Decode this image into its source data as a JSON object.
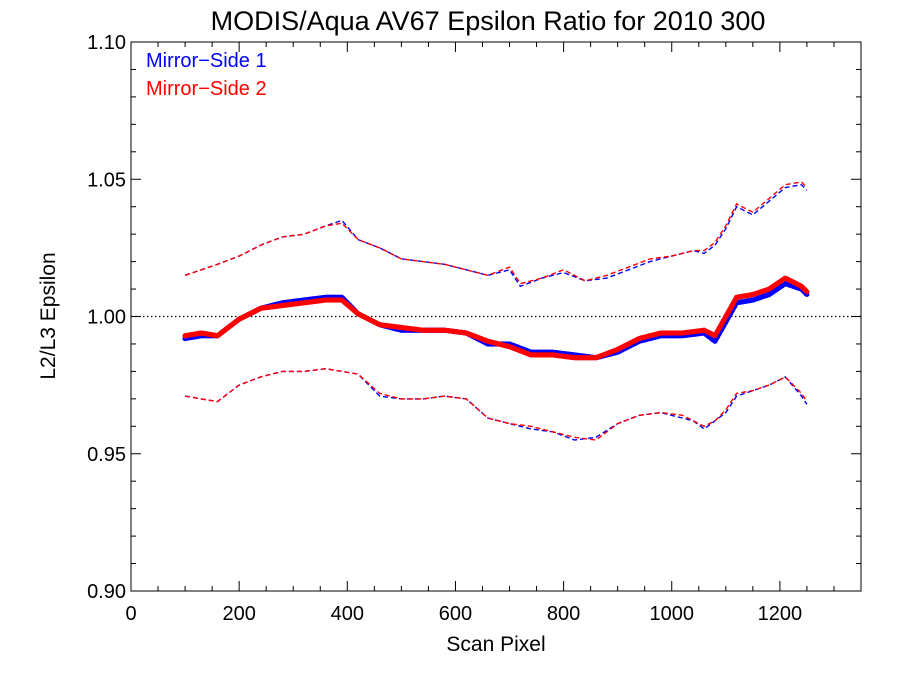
{
  "chart_data": {
    "type": "scatter",
    "title": "MODIS/Aqua AV67 Epsilon Ratio for 2010 300",
    "xlabel": "Scan Pixel",
    "ylabel": "L2/L3 Epsilon",
    "xlim": [
      0,
      1350
    ],
    "ylim": [
      0.9,
      1.1
    ],
    "x_ticks": [
      0,
      200,
      400,
      600,
      800,
      1000,
      1200
    ],
    "x_tick_labels": [
      "0",
      "200",
      "400",
      "600",
      "800",
      "1000",
      "1200"
    ],
    "y_ticks": [
      0.9,
      0.95,
      1.0,
      1.05,
      1.1
    ],
    "y_tick_labels": [
      "0.90",
      "0.95",
      "1.00",
      "1.05",
      "1.10"
    ],
    "x_minor_step": 50,
    "y_minor_step": 0.01,
    "reference_line": {
      "y": 1.0,
      "style": "dotted",
      "color": "#000000"
    },
    "legend": {
      "position": "top-left",
      "entries": [
        {
          "label": "Mirror−Side 1",
          "color": "#0000ff"
        },
        {
          "label": "Mirror−Side 2",
          "color": "#ff0000"
        }
      ]
    },
    "series": [
      {
        "name": "Mirror−Side 1",
        "color": "#0000ff",
        "mean": {
          "x": [
            100,
            130,
            160,
            200,
            240,
            280,
            320,
            360,
            390,
            420,
            460,
            500,
            540,
            580,
            620,
            660,
            700,
            740,
            780,
            820,
            860,
            900,
            940,
            980,
            1020,
            1060,
            1080,
            1100,
            1120,
            1150,
            1180,
            1210,
            1240,
            1250
          ],
          "y": [
            0.992,
            0.993,
            0.993,
            0.999,
            1.003,
            1.005,
            1.006,
            1.007,
            1.007,
            1.001,
            0.997,
            0.995,
            0.995,
            0.995,
            0.994,
            0.99,
            0.99,
            0.987,
            0.987,
            0.986,
            0.985,
            0.987,
            0.991,
            0.993,
            0.993,
            0.994,
            0.991,
            0.998,
            1.005,
            1.006,
            1.008,
            1.012,
            1.01,
            1.008
          ]
        },
        "upper": {
          "x": [
            100,
            130,
            160,
            200,
            240,
            280,
            320,
            360,
            390,
            420,
            460,
            500,
            540,
            580,
            620,
            660,
            700,
            720,
            760,
            800,
            840,
            880,
            920,
            960,
            1000,
            1040,
            1060,
            1080,
            1100,
            1120,
            1150,
            1180,
            1210,
            1240,
            1250
          ],
          "y": [
            1.015,
            1.017,
            1.019,
            1.022,
            1.026,
            1.029,
            1.03,
            1.033,
            1.035,
            1.028,
            1.025,
            1.021,
            1.02,
            1.019,
            1.017,
            1.015,
            1.017,
            1.011,
            1.014,
            1.016,
            1.013,
            1.014,
            1.017,
            1.02,
            1.022,
            1.024,
            1.023,
            1.026,
            1.032,
            1.04,
            1.037,
            1.042,
            1.047,
            1.048,
            1.046
          ]
        },
        "lower": {
          "x": [
            100,
            130,
            160,
            200,
            240,
            280,
            320,
            360,
            390,
            420,
            460,
            500,
            540,
            580,
            620,
            660,
            700,
            740,
            780,
            820,
            860,
            900,
            940,
            980,
            1020,
            1040,
            1060,
            1080,
            1100,
            1120,
            1150,
            1180,
            1210,
            1240,
            1250
          ],
          "y": [
            0.971,
            0.97,
            0.969,
            0.975,
            0.978,
            0.98,
            0.98,
            0.981,
            0.98,
            0.979,
            0.971,
            0.97,
            0.97,
            0.971,
            0.97,
            0.963,
            0.961,
            0.959,
            0.958,
            0.955,
            0.956,
            0.961,
            0.964,
            0.965,
            0.963,
            0.962,
            0.959,
            0.962,
            0.965,
            0.971,
            0.973,
            0.975,
            0.978,
            0.971,
            0.968
          ]
        }
      },
      {
        "name": "Mirror−Side 2",
        "color": "#ff0000",
        "mean": {
          "x": [
            100,
            130,
            160,
            200,
            240,
            280,
            320,
            360,
            390,
            420,
            460,
            500,
            540,
            580,
            620,
            660,
            700,
            740,
            780,
            820,
            860,
            900,
            940,
            980,
            1020,
            1060,
            1080,
            1100,
            1120,
            1150,
            1180,
            1210,
            1240,
            1250
          ],
          "y": [
            0.993,
            0.994,
            0.993,
            0.999,
            1.003,
            1.004,
            1.005,
            1.006,
            1.006,
            1.001,
            0.997,
            0.996,
            0.995,
            0.995,
            0.994,
            0.991,
            0.989,
            0.986,
            0.986,
            0.985,
            0.985,
            0.988,
            0.992,
            0.994,
            0.994,
            0.995,
            0.993,
            1.0,
            1.007,
            1.008,
            1.01,
            1.014,
            1.011,
            1.009
          ]
        },
        "upper": {
          "x": [
            100,
            130,
            160,
            200,
            240,
            280,
            320,
            360,
            390,
            420,
            460,
            500,
            540,
            580,
            620,
            660,
            700,
            720,
            760,
            800,
            840,
            880,
            920,
            960,
            1000,
            1040,
            1060,
            1080,
            1100,
            1120,
            1150,
            1180,
            1210,
            1240,
            1250
          ],
          "y": [
            1.015,
            1.017,
            1.019,
            1.022,
            1.026,
            1.029,
            1.03,
            1.033,
            1.034,
            1.028,
            1.025,
            1.021,
            1.02,
            1.019,
            1.017,
            1.015,
            1.018,
            1.012,
            1.014,
            1.017,
            1.013,
            1.015,
            1.018,
            1.021,
            1.022,
            1.024,
            1.024,
            1.027,
            1.033,
            1.041,
            1.038,
            1.043,
            1.048,
            1.049,
            1.047
          ]
        },
        "lower": {
          "x": [
            100,
            130,
            160,
            200,
            240,
            280,
            320,
            360,
            390,
            420,
            460,
            500,
            540,
            580,
            620,
            660,
            700,
            740,
            780,
            820,
            860,
            900,
            940,
            980,
            1020,
            1040,
            1060,
            1080,
            1100,
            1120,
            1150,
            1180,
            1210,
            1240,
            1250
          ],
          "y": [
            0.971,
            0.97,
            0.969,
            0.975,
            0.978,
            0.98,
            0.98,
            0.981,
            0.98,
            0.979,
            0.972,
            0.97,
            0.97,
            0.971,
            0.97,
            0.963,
            0.961,
            0.96,
            0.958,
            0.956,
            0.955,
            0.961,
            0.964,
            0.965,
            0.964,
            0.962,
            0.96,
            0.962,
            0.966,
            0.972,
            0.973,
            0.975,
            0.978,
            0.972,
            0.969
          ]
        }
      }
    ]
  }
}
